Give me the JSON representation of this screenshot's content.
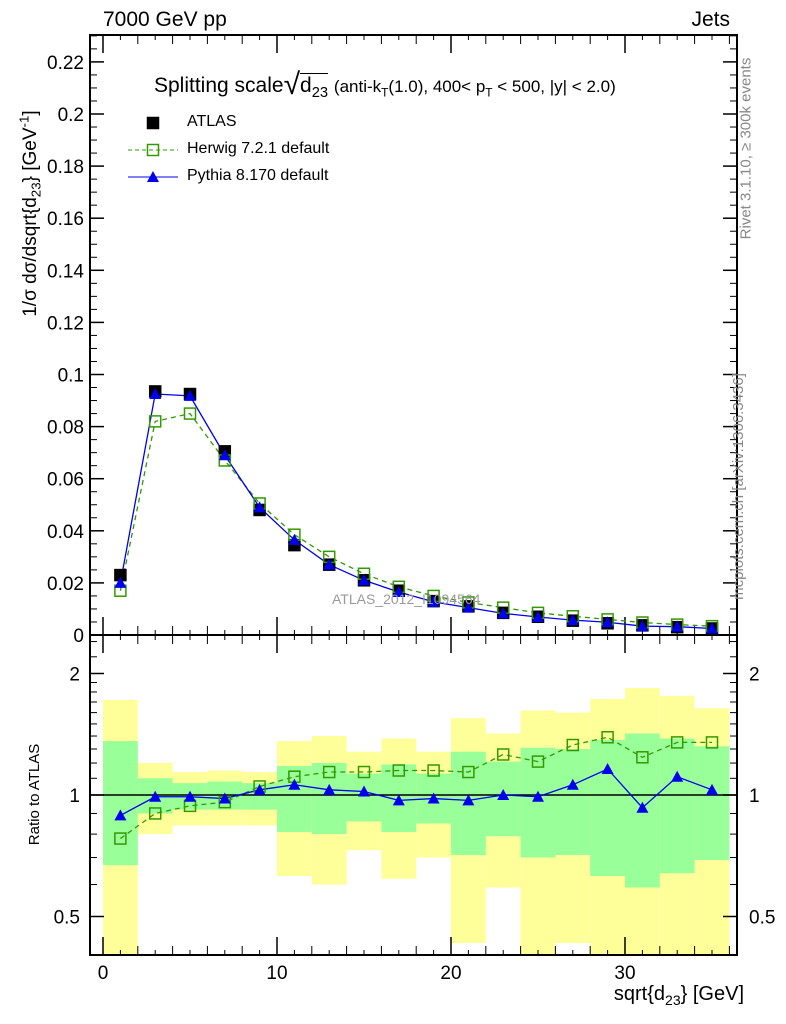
{
  "header": {
    "left": "7000 GeV pp",
    "right": "Jets"
  },
  "side": {
    "rivet": "Rivet 3.1.10, ≥ 300k events",
    "mcplots": "mcplots.cern.ch [arXiv:1306.3436]"
  },
  "chart_data": [
    {
      "type": "line",
      "title_main": "Splitting scale",
      "title_sqrt": "d",
      "title_sqrt_sub": "23",
      "title_rest_a": "(anti-k",
      "title_rest_sub": "T",
      "title_rest_b": "(1.0), 400< p",
      "title_rest_sub2": "T",
      "title_rest_c": " < 500, |y| < 2.0)",
      "ylabel": "1/σ dσ/dsqrt{d",
      "ylabel_sub": "23",
      "ylabel_end": "} [GeV",
      "ylabel_sup": "-1",
      "ylabel_close": "]",
      "watermark": "ATLAS_2012_I1094564",
      "xlim": [
        -0.75,
        36.4
      ],
      "ylim": [
        0,
        0.2304
      ],
      "yticks": [
        "0",
        "0.02",
        "0.04",
        "0.06",
        "0.08",
        "0.1",
        "0.12",
        "0.14",
        "0.16",
        "0.18",
        "0.2",
        "0.22"
      ],
      "x": [
        1,
        3,
        5,
        7,
        9,
        11,
        13,
        15,
        17,
        19,
        21,
        23,
        25,
        27,
        29,
        31,
        33,
        35
      ],
      "series": [
        {
          "name": "ATLAS",
          "color": "#000000",
          "values": [
            0.023,
            0.0935,
            0.0925,
            0.0705,
            0.048,
            0.0345,
            0.027,
            0.021,
            0.017,
            0.013,
            0.011,
            0.0085,
            0.007,
            0.0055,
            0.0045,
            0.0037,
            0.003,
            0.0025
          ]
        },
        {
          "name": "Herwig 7.2.1 default",
          "color": "#339900",
          "values": [
            0.017,
            0.082,
            0.085,
            0.067,
            0.0505,
            0.0385,
            0.03,
            0.0235,
            0.0185,
            0.015,
            0.0125,
            0.0105,
            0.0085,
            0.0072,
            0.006,
            0.0048,
            0.004,
            0.0034
          ]
        },
        {
          "name": "Pythia 8.170 default",
          "color": "#0000ee",
          "values": [
            0.02,
            0.0925,
            0.0918,
            0.069,
            0.049,
            0.0365,
            0.027,
            0.021,
            0.0165,
            0.0127,
            0.0105,
            0.0083,
            0.0069,
            0.0057,
            0.0049,
            0.0034,
            0.0032,
            0.0025
          ]
        }
      ]
    },
    {
      "type": "line",
      "ylabel": "Ratio to ATLAS",
      "xlabel": "sqrt{d",
      "xlabel_sub": "23",
      "xlabel_end": "} [GeV]",
      "yscale": "log",
      "ylim": [
        0.4,
        2.49
      ],
      "yticks": [
        "0.5",
        "1",
        "2"
      ],
      "xticks": [
        "0",
        "10",
        "20",
        "30"
      ],
      "bin_edges": [
        0,
        2,
        4,
        6,
        8,
        10,
        12,
        14,
        16,
        18,
        20,
        22,
        24,
        26,
        28,
        30,
        32,
        34,
        36
      ],
      "band_total": {
        "color": "#ffff99",
        "low": [
          0.4,
          0.8,
          0.84,
          0.84,
          0.84,
          0.63,
          0.6,
          0.73,
          0.62,
          0.7,
          0.43,
          0.59,
          0.4,
          0.43,
          0.4,
          0.4,
          0.4,
          0.4
        ],
        "high": [
          1.72,
          1.2,
          1.14,
          1.15,
          1.14,
          1.36,
          1.4,
          1.28,
          1.38,
          1.28,
          1.55,
          1.42,
          1.62,
          1.6,
          1.73,
          1.84,
          1.76,
          1.64
        ]
      },
      "band_stat": {
        "color": "#99ff99",
        "low": [
          0.67,
          0.9,
          0.92,
          0.92,
          0.92,
          0.81,
          0.8,
          0.86,
          0.81,
          0.85,
          0.71,
          0.79,
          0.7,
          0.71,
          0.63,
          0.59,
          0.64,
          0.69
        ],
        "high": [
          1.36,
          1.1,
          1.07,
          1.08,
          1.07,
          1.18,
          1.2,
          1.13,
          1.19,
          1.13,
          1.28,
          1.21,
          1.31,
          1.3,
          1.37,
          1.42,
          1.38,
          1.32
        ]
      },
      "series": [
        {
          "name": "Herwig 7.2.1 default",
          "values": [
            0.78,
            0.9,
            0.94,
            0.96,
            1.05,
            1.11,
            1.14,
            1.14,
            1.15,
            1.15,
            1.14,
            1.26,
            1.21,
            1.33,
            1.39,
            1.24,
            1.35,
            1.35
          ]
        },
        {
          "name": "Pythia 8.170 default",
          "values": [
            0.89,
            0.99,
            0.99,
            0.98,
            1.03,
            1.06,
            1.03,
            1.02,
            0.97,
            0.98,
            0.97,
            1.0,
            0.99,
            1.06,
            1.16,
            0.93,
            1.11,
            1.03
          ]
        }
      ]
    }
  ]
}
